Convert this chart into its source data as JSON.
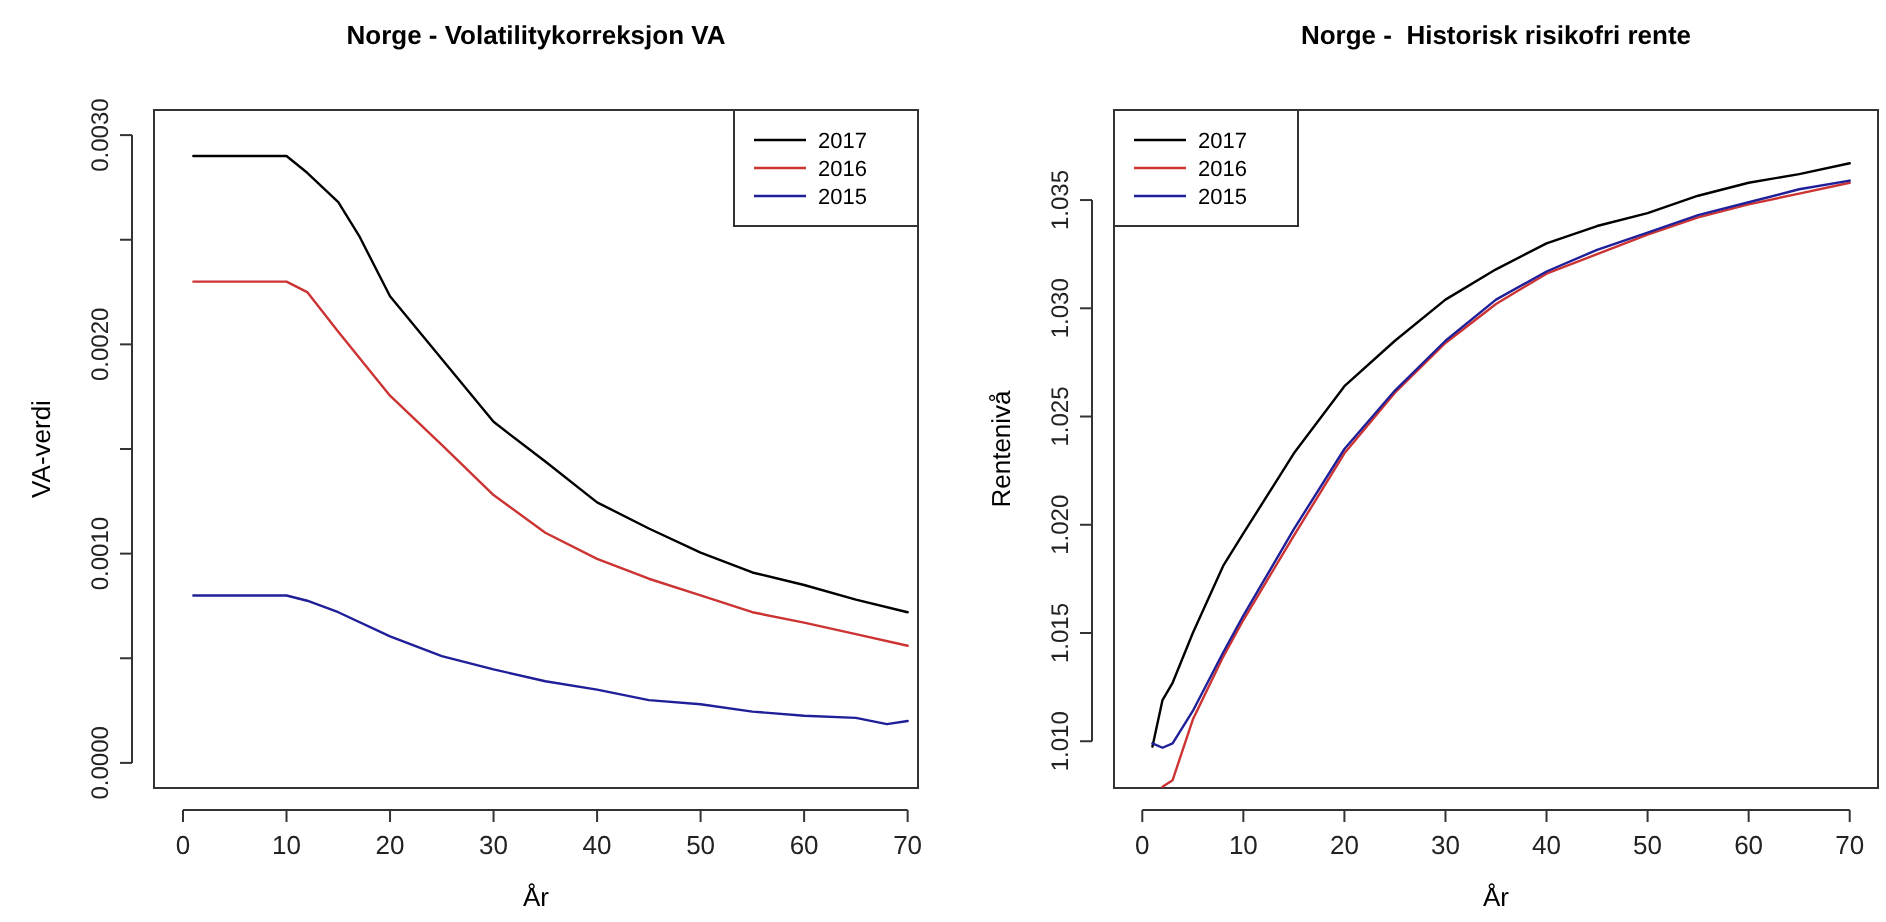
{
  "chart_data": [
    {
      "type": "line",
      "title": "Norge - Volatilitykorreksjon VA",
      "xlabel": "År",
      "ylabel": "VA-verdi",
      "xlim": [
        -2.8,
        71
      ],
      "xticks": [
        0,
        10,
        20,
        30,
        40,
        50,
        60,
        70
      ],
      "ylim": [
        -0.00012,
        0.00312
      ],
      "yticks": [
        {
          "value": 0,
          "label": "0.0000"
        },
        {
          "value": 0.0005,
          "label": null
        },
        {
          "value": 0.001,
          "label": "0.0010"
        },
        {
          "value": 0.0015,
          "label": null
        },
        {
          "value": 0.002,
          "label": "0.0020"
        },
        {
          "value": 0.0025,
          "label": null
        },
        {
          "value": 0.003,
          "label": "0.0030"
        }
      ],
      "legend": "top right",
      "series": [
        {
          "name": "2017",
          "color": "#000000",
          "x": [
            1,
            10,
            12,
            15,
            17,
            20,
            25,
            30,
            35,
            40,
            45,
            50,
            55,
            60,
            65,
            70
          ],
          "values": [
            0.0029,
            0.0029,
            0.00282,
            0.00268,
            0.00252,
            0.00223,
            0.00193,
            0.00163,
            0.00144,
            0.001245,
            0.00112,
            0.001005,
            0.00091,
            0.00085,
            0.00078,
            0.00072
          ]
        },
        {
          "name": "2016",
          "color": "#cc3333",
          "x": [
            1,
            10,
            12,
            15,
            20,
            25,
            30,
            35,
            40,
            45,
            50,
            55,
            60,
            65,
            70
          ],
          "values": [
            0.0023,
            0.0023,
            0.00225,
            0.00206,
            0.001755,
            0.00152,
            0.00128,
            0.0011,
            0.000975,
            0.00088,
            0.0008,
            0.00072,
            0.00067,
            0.000615,
            0.00056
          ]
        },
        {
          "name": "2015",
          "color": "#1f1f99",
          "x": [
            1,
            10,
            12,
            15,
            20,
            25,
            30,
            35,
            40,
            45,
            50,
            55,
            60,
            65,
            68,
            70
          ],
          "values": [
            0.0008,
            0.0008,
            0.000775,
            0.00072,
            0.000605,
            0.00051,
            0.000447,
            0.00039,
            0.00035,
            0.0003,
            0.00028,
            0.000245,
            0.000225,
            0.000215,
            0.000185,
            0.0002
          ]
        }
      ]
    },
    {
      "type": "line",
      "title": "Norge -  Historisk risikofri rente",
      "xlabel": "År",
      "ylabel": "Rentenivå",
      "xlim": [
        -2.8,
        72.8
      ],
      "xticks": [
        0,
        10,
        20,
        30,
        40,
        50,
        60,
        70
      ],
      "ylim": [
        1.00784,
        1.03916
      ],
      "yticks": [
        {
          "value": 1.01,
          "label": "1.010"
        },
        {
          "value": 1.015,
          "label": "1.015"
        },
        {
          "value": 1.02,
          "label": "1.020"
        },
        {
          "value": 1.025,
          "label": "1.025"
        },
        {
          "value": 1.03,
          "label": "1.030"
        },
        {
          "value": 1.035,
          "label": "1.035"
        }
      ],
      "legend": "top left",
      "series": [
        {
          "name": "2017",
          "color": "#000000",
          "x": [
            1,
            2,
            3,
            5,
            8,
            10,
            15,
            20,
            25,
            30,
            35,
            40,
            45,
            50,
            55,
            60,
            65,
            70
          ],
          "values": [
            1.00975,
            1.0119,
            1.0127,
            1.015,
            1.0181,
            1.0196,
            1.0233,
            1.0264,
            1.0285,
            1.0304,
            1.0318,
            1.033,
            1.0338,
            1.0344,
            1.0352,
            1.0358,
            1.0362,
            1.0367
          ]
        },
        {
          "name": "2016",
          "color": "#cc3333",
          "x": [
            2,
            3,
            5,
            8,
            10,
            15,
            20,
            25,
            30,
            35,
            40,
            45,
            50,
            55,
            60,
            65,
            70
          ],
          "values": [
            1.0079,
            1.0082,
            1.011,
            1.0139,
            1.0156,
            1.0195,
            1.0233,
            1.0261,
            1.0284,
            1.0302,
            1.0316,
            1.0325,
            1.0334,
            1.0342,
            1.0348,
            1.0353,
            1.0358
          ]
        },
        {
          "name": "2015",
          "color": "#1f1f99",
          "x": [
            1,
            2,
            3,
            5,
            8,
            10,
            15,
            20,
            25,
            30,
            35,
            40,
            45,
            50,
            55,
            60,
            65,
            70
          ],
          "values": [
            1.0099,
            1.0097,
            1.0099,
            1.0114,
            1.0141,
            1.0158,
            1.0198,
            1.0235,
            1.0262,
            1.0285,
            1.0304,
            1.0317,
            1.0327,
            1.0335,
            1.0343,
            1.0349,
            1.0355,
            1.0359
          ]
        }
      ]
    }
  ]
}
